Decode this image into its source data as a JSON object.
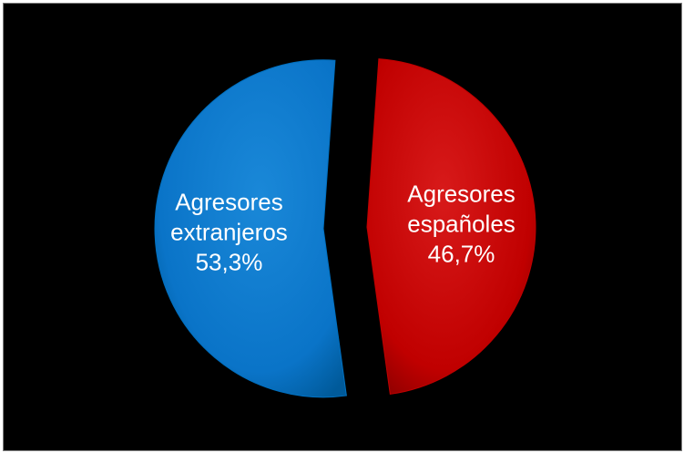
{
  "chart_data": {
    "type": "pie",
    "title": "",
    "slices": [
      {
        "label_lines": [
          "Agresores",
          "españoles"
        ],
        "value": 46.7,
        "value_label": "46,7%",
        "color": "#c00000",
        "exploded": true
      },
      {
        "label_lines": [
          "Agresores",
          "extranjeros"
        ],
        "value": 53.3,
        "value_label": "53,3%",
        "color": "#0070c0",
        "exploded": true
      }
    ],
    "start_angle": "12 o'clock",
    "direction": "clockwise",
    "background": "#000000",
    "label_color": "#ffffff"
  }
}
